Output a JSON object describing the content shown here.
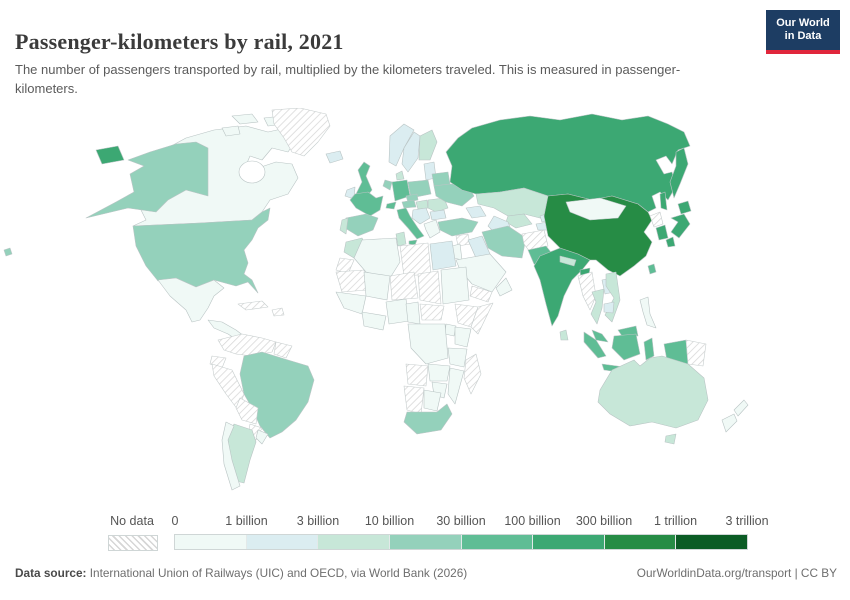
{
  "header": {
    "title": "Passenger-kilometers by rail, 2021",
    "subtitle": "The number of passengers transported by rail, multiplied by the kilometers traveled. This is measured in passenger-kilometers.",
    "logo": {
      "line1": "Our World",
      "line2": "in Data",
      "bg": "#1d3d63",
      "accent": "#e0263b"
    }
  },
  "legend": {
    "no_data_label": "No data",
    "tick_labels": [
      "0",
      "1 billion",
      "3 billion",
      "10 billion",
      "30 billion",
      "100 billion",
      "300 billion",
      "1 trillion",
      "3 trillion"
    ],
    "bin_colors": [
      "#f0f9f6",
      "#dbedf1",
      "#c7e7d8",
      "#94d1bb",
      "#5fbd95",
      "#3ca873",
      "#268c45",
      "#0b5c25"
    ]
  },
  "footer": {
    "source_label": "Data source:",
    "source_text": " International Union of Railways (UIC) and OECD, via World Bank (2026)",
    "right_text": "OurWorldinData.org/transport | CC BY"
  },
  "map": {
    "colors": {
      "ocean": "#ffffff",
      "border": "#b9c4c4",
      "no_data_border": "#c6cdcd",
      "hatch_line": "#d6d6d6"
    },
    "country_fills": {
      "canada": 0,
      "usa": 3,
      "hawaii": 3,
      "mexico": 0,
      "camerica": 0,
      "cuba": "nd",
      "hispaniola": "nd",
      "greenland": "nd",
      "colombia_venezuela": "nd",
      "guyanas": "nd",
      "ecuador": "nd",
      "peru": "nd",
      "brazil": 3,
      "bolivia": "nd",
      "paraguay": "nd",
      "argentina": 2,
      "chile": 0,
      "uruguay": 0,
      "iceland": 1,
      "uk": 4,
      "ireland": 1,
      "norway": 1,
      "sweden": 1,
      "finland": 2,
      "denmark": 2,
      "baltics": 1,
      "poland": 3,
      "germany": 4,
      "benelux": 3,
      "france": 4,
      "spain": 3,
      "portugal": 2,
      "switzerland": 4,
      "italy": 4,
      "austria": 3,
      "czech": 3,
      "hungary": 2,
      "balkans": 1,
      "romania": 2,
      "bulgaria": 1,
      "greece": 0,
      "belarus": 3,
      "ukraine": 3,
      "russia": 5,
      "kazakhstan": 2,
      "uzbekistan": 2,
      "turkmenistan": 1,
      "kyrgyzstan": 1,
      "tajikistan": 1,
      "caucasus": 1,
      "turkey": 3,
      "syria": "nd",
      "iraq": 1,
      "israel_jordan": 0,
      "saudi": 0,
      "yemen": "nd",
      "oman": 0,
      "iran": 3,
      "afghanistan": "nd",
      "pakistan": 4,
      "india": 5,
      "nepal": 2,
      "bangladesh": 5,
      "srilanka": 2,
      "china": 6,
      "mongolia": 0,
      "taiwan": 4,
      "nkorea": "nd",
      "skorea": 5,
      "japan": 5,
      "myanmar": "nd",
      "thailand": 2,
      "laos": 1,
      "vietnam": 2,
      "cambodia": 1,
      "malaysia": 4,
      "indonesia": 4,
      "png": "nd",
      "philippines": 0,
      "morocco": 2,
      "wsahara": "nd",
      "algeria": 0,
      "tunisia": 2,
      "libya": "nd",
      "egypt": 1,
      "mauritania": "nd",
      "mali": 0,
      "niger": "nd",
      "chad": "nd",
      "sudan": 0,
      "wafrica": 0,
      "nigeria": 0,
      "ghana_ivory": 0,
      "cameroon": 0,
      "car": "nd",
      "ethiopia": "nd",
      "somalia": "nd",
      "kenya": 0,
      "uganda": 0,
      "drc": 0,
      "tanzania": 0,
      "angola": "nd",
      "zambia": 0,
      "mozambique": 0,
      "zimbabwe": 0,
      "namibia": "nd",
      "botswana": 0,
      "southafrica": 3,
      "madagascar": "nd",
      "australia": 2,
      "tasmania": 2,
      "nz": 0
    }
  },
  "chart_data": {
    "type": "choropleth",
    "title": "Passenger-kilometers by rail, 2021",
    "subtitle": "The number of passengers transported by rail, multiplied by the kilometers traveled. This is measured in passenger-kilometers.",
    "year": "2021",
    "unit": "passenger-kilometers",
    "legend_position": "bottom",
    "bins": [
      {
        "range": "0 – 1 billion",
        "color": "#f0f9f6"
      },
      {
        "range": "1 – 3 billion",
        "color": "#dbedf1"
      },
      {
        "range": "3 – 10 billion",
        "color": "#c7e7d8"
      },
      {
        "range": "10 – 30 billion",
        "color": "#94d1bb"
      },
      {
        "range": "30 – 100 billion",
        "color": "#5fbd95"
      },
      {
        "range": "100 – 300 billion",
        "color": "#3ca873"
      },
      {
        "range": "300 billion – 1 trillion",
        "color": "#268c45"
      },
      {
        "range": "1 – 3 trillion",
        "color": "#0b5c25"
      }
    ],
    "no_data": {
      "label": "No data",
      "style": "gray diagonal hatching"
    },
    "countries_by_bin": {
      "No data": [
        "Greenland",
        "Cuba",
        "Venezuela",
        "Colombia",
        "Ecuador",
        "Peru",
        "Bolivia",
        "Paraguay",
        "Western Sahara",
        "Mauritania",
        "Libya",
        "Niger",
        "Chad",
        "Central African Republic",
        "Ethiopia",
        "Somalia",
        "Angola",
        "Namibia",
        "Madagascar",
        "Syria",
        "Yemen",
        "Afghanistan",
        "Myanmar",
        "North Korea",
        "Papua New Guinea"
      ],
      "0 – 1 billion": [
        "Canada",
        "Mexico",
        "Chile",
        "Uruguay",
        "Greece",
        "Saudi Arabia",
        "Oman",
        "Mongolia",
        "Philippines",
        "New Zealand",
        "Algeria",
        "Mali",
        "Sudan",
        "Nigeria",
        "Kenya",
        "Tanzania",
        "DR Congo",
        "Zambia",
        "Mozambique",
        "Zimbabwe",
        "Botswana"
      ],
      "1 – 3 billion": [
        "Iceland",
        "Ireland",
        "Norway",
        "Sweden",
        "Baltic states",
        "Bulgaria",
        "Iraq",
        "Caucasus",
        "Turkmenistan",
        "Kyrgyzstan",
        "Tajikistan",
        "Laos",
        "Cambodia",
        "Egypt"
      ],
      "3 – 10 billion": [
        "Finland",
        "Denmark",
        "Portugal",
        "Romania",
        "Hungary",
        "Morocco",
        "Tunisia",
        "Kazakhstan",
        "Uzbekistan",
        "Argentina",
        "Australia",
        "Thailand",
        "Vietnam",
        "Nepal",
        "Sri Lanka"
      ],
      "10 – 30 billion": [
        "United States",
        "Brazil",
        "Spain",
        "Poland",
        "Czechia",
        "Austria",
        "Belarus",
        "Ukraine",
        "Turkey",
        "Iran",
        "South Africa"
      ],
      "30 – 100 billion": [
        "United Kingdom",
        "France",
        "Germany",
        "Switzerland",
        "Italy",
        "Pakistan",
        "Indonesia",
        "Malaysia",
        "Taiwan"
      ],
      "100 – 300 billion": [
        "Russia",
        "Japan",
        "South Korea",
        "India",
        "Bangladesh"
      ],
      "300 billion – 1 trillion": [
        "China"
      ],
      "1 – 3 trillion": []
    }
  }
}
